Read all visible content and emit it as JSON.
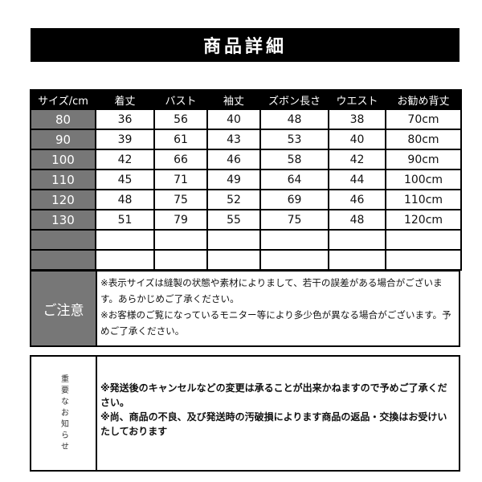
{
  "title": "商品詳細",
  "table": {
    "headers": [
      "サイズ/cm",
      "着丈",
      "バスト",
      "袖丈",
      "ズボン長さ",
      "ウエスト",
      "お勧め背丈"
    ],
    "rows": [
      [
        "80",
        "36",
        "56",
        "40",
        "48",
        "38",
        "70cm"
      ],
      [
        "90",
        "39",
        "61",
        "43",
        "53",
        "40",
        "80cm"
      ],
      [
        "100",
        "42",
        "66",
        "46",
        "58",
        "42",
        "90cm"
      ],
      [
        "110",
        "45",
        "71",
        "49",
        "64",
        "44",
        "100cm"
      ],
      [
        "120",
        "48",
        "75",
        "52",
        "69",
        "46",
        "110cm"
      ],
      [
        "130",
        "51",
        "79",
        "55",
        "75",
        "48",
        "120cm"
      ],
      [
        "",
        "",
        "",
        "",
        "",
        "",
        ""
      ],
      [
        "",
        "",
        "",
        "",
        "",
        "",
        ""
      ]
    ]
  },
  "caution": {
    "label": "ご注意",
    "lines": [
      "※表示サイズは縫製の状態や素材によりまして、若干の誤差がある場合がございます。あらかじめご了承ください。",
      "※お客様のご覧になっているモニター等により多少色が異なる場合がございます。予めご了承ください。"
    ]
  },
  "notice": {
    "label": "重要なお知らせ",
    "lines": [
      "※発送後のキャンセルなどの変更は承ることが出来かねますので予めご了承ください。",
      "※尚、商品の不良、及び発送時の汚破損によります商品の返品・交換はお受けいたしております"
    ]
  },
  "colors": {
    "header_bg": "#000000",
    "size_col_bg": "#777777"
  }
}
